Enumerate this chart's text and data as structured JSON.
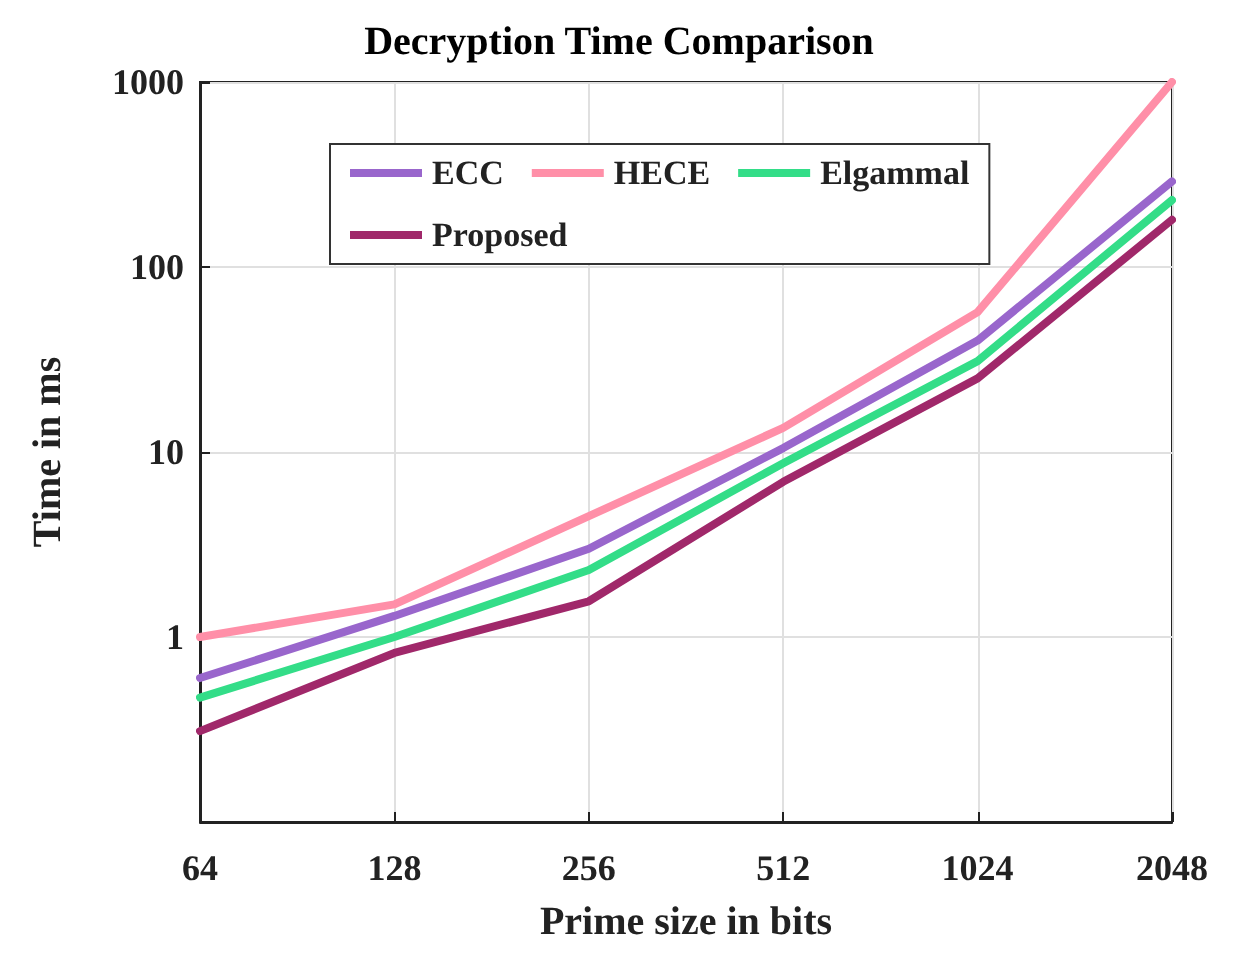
{
  "chart_data": {
    "type": "line",
    "title": "Decryption Time Comparison",
    "xlabel": "Prime size in bits",
    "ylabel": "Time in ms",
    "categories": [
      "64",
      "128",
      "256",
      "512",
      "1024",
      "2048"
    ],
    "series": [
      {
        "name": "ECC",
        "color": "#9966cc",
        "values": [
          0.6,
          1.3,
          3,
          10.5,
          40,
          290
        ]
      },
      {
        "name": "HECE",
        "color": "#ff8fa8",
        "values": [
          1,
          1.5,
          4.5,
          13.5,
          57,
          1000
        ]
      },
      {
        "name": "Elgammal",
        "color": "#33dd88",
        "values": [
          0.47,
          1,
          2.3,
          8.7,
          31,
          230
        ]
      },
      {
        "name": "Proposed",
        "color": "#a0286a",
        "values": [
          0.31,
          0.82,
          1.56,
          6.9,
          25,
          180
        ]
      }
    ],
    "log": "y",
    "ylim": [
      0.1,
      1000
    ],
    "yticks": [
      {
        "value": 0.1,
        "label": null
      },
      1,
      10,
      100,
      1000
    ],
    "grid": true,
    "legend": "top left",
    "marker": "none",
    "line_style": "solid"
  }
}
